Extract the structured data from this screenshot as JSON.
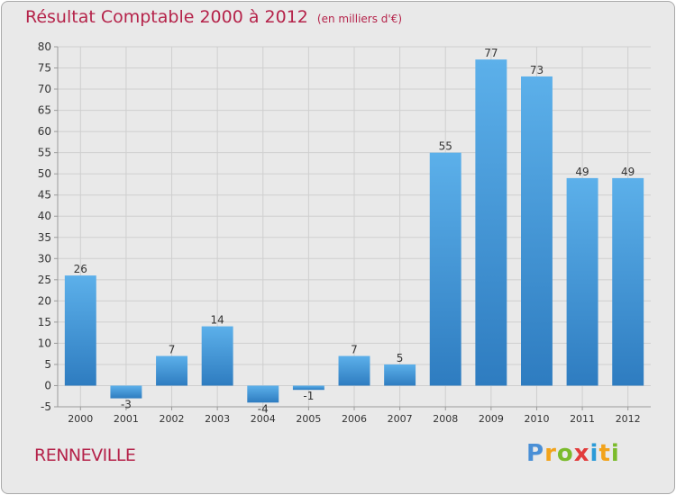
{
  "title": "Résultat Comptable 2000 à 2012",
  "subtitle": "(en milliers d'€)",
  "commune": "RENNEVILLE",
  "logo_text": "Proxiti",
  "colors": {
    "title": "#b5234a",
    "bar_top": "#5cb0ea",
    "bar_bottom": "#2e7cc0",
    "grid": "#cfcfcf",
    "background": "#e9e9e9"
  },
  "chart_data": {
    "type": "bar",
    "title": "Résultat Comptable 2000 à 2012",
    "xlabel": "",
    "ylabel": "",
    "categories": [
      "2000",
      "2001",
      "2002",
      "2003",
      "2004",
      "2005",
      "2006",
      "2007",
      "2008",
      "2009",
      "2010",
      "2011",
      "2012"
    ],
    "values": [
      26,
      -3,
      7,
      14,
      -4,
      -1,
      7,
      5,
      55,
      77,
      73,
      49,
      49
    ],
    "labels": [
      "26",
      "-3",
      "7",
      "14",
      "-4",
      "-1",
      "7",
      "5",
      "55",
      "77",
      "73",
      "49",
      "49"
    ],
    "ylim": [
      -5,
      80
    ],
    "yticks": [
      -5,
      0,
      5,
      10,
      15,
      20,
      25,
      30,
      35,
      40,
      45,
      50,
      55,
      60,
      65,
      70,
      75,
      80
    ],
    "grid": true,
    "legend": "none"
  }
}
